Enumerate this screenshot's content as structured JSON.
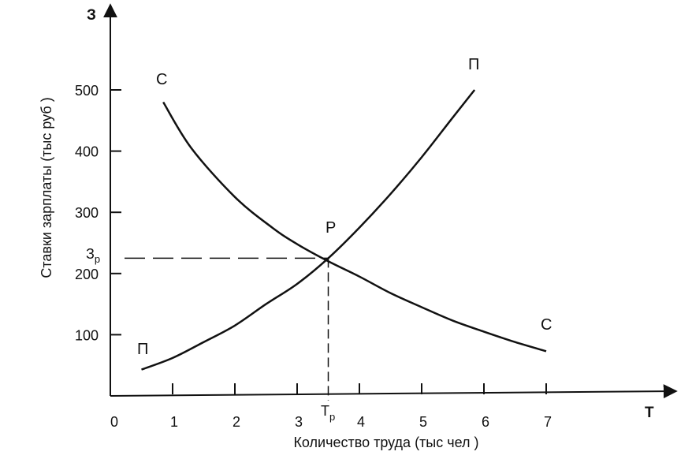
{
  "chart_data": {
    "type": "line",
    "title": "",
    "xlabel": "Количество труда (тыс чел )",
    "ylabel": "Ставки зарплаты (тыс руб )",
    "x_axis_letter": "Т",
    "y_axis_letter": "З",
    "xlim": [
      0,
      9
    ],
    "ylim": [
      0,
      630
    ],
    "x_ticks": [
      1,
      2,
      3,
      4,
      5,
      6,
      7
    ],
    "x_tick_labels": [
      "1",
      "2",
      "3",
      "4",
      "5",
      "6",
      "7"
    ],
    "origin_label": "0",
    "y_ticks": [
      100,
      200,
      300,
      400,
      500
    ],
    "y_tick_labels": [
      "100",
      "200",
      "300",
      "400",
      "500"
    ],
    "grid": false,
    "series": [
      {
        "name": "С",
        "color": "#111111",
        "x": [
          0.85,
          1.3,
          2.0,
          2.6,
          3.0,
          3.5,
          4.0,
          4.5,
          5.0,
          5.5,
          6.0,
          6.5,
          7.0
        ],
        "y": [
          480,
          405,
          325,
          275,
          248,
          220,
          195,
          168,
          145,
          123,
          105,
          88,
          73
        ]
      },
      {
        "name": "П",
        "color": "#111111",
        "x": [
          0.5,
          1.0,
          1.5,
          2.0,
          2.5,
          3.0,
          3.5,
          4.0,
          4.5,
          5.0,
          5.5,
          5.85
        ],
        "y": [
          43,
          62,
          88,
          115,
          150,
          183,
          225,
          275,
          330,
          390,
          455,
          500
        ]
      }
    ],
    "labels": {
      "curve_s_top": "С",
      "curve_s_bottom": "С",
      "curve_p_top": "П",
      "curve_p_bottom": "П",
      "equilibrium": "Р"
    },
    "equilibrium": {
      "x": 3.5,
      "y": 225,
      "x_label_main": "Т",
      "x_label_sub": "р",
      "y_label_main": "З",
      "y_label_sub": "р"
    }
  }
}
